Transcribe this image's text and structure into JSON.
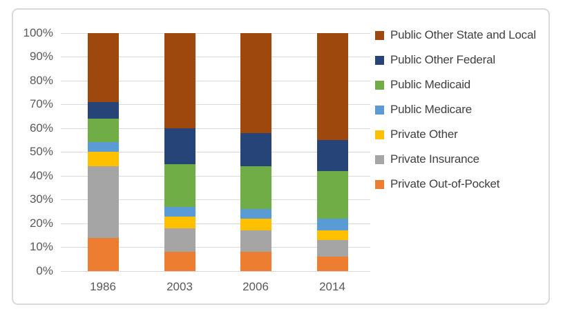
{
  "chart_data": {
    "type": "bar",
    "stacked": true,
    "orientation": "vertical",
    "title": "",
    "xlabel": "",
    "ylabel": "",
    "categories": [
      "1986",
      "2003",
      "2006",
      "2014"
    ],
    "series": [
      {
        "name": "Private Out-of-Pocket",
        "color": "#ED7D31",
        "values": [
          14,
          8,
          8,
          6
        ]
      },
      {
        "name": "Private Insurance",
        "color": "#A5A5A5",
        "values": [
          30,
          10,
          9,
          7
        ]
      },
      {
        "name": "Private Other",
        "color": "#FFC000",
        "values": [
          6,
          5,
          5,
          4
        ]
      },
      {
        "name": "Public Medicare",
        "color": "#5B9BD5",
        "values": [
          4,
          4,
          4,
          5
        ]
      },
      {
        "name": "Public Medicaid",
        "color": "#70AD47",
        "values": [
          10,
          18,
          18,
          20
        ]
      },
      {
        "name": "Public Other Federal",
        "color": "#264478",
        "values": [
          7,
          15,
          14,
          13
        ]
      },
      {
        "name": "Public Other State and Local",
        "color": "#9E480E",
        "values": [
          29,
          40,
          42,
          45
        ]
      }
    ],
    "y_ticks": [
      "0%",
      "10%",
      "20%",
      "30%",
      "40%",
      "50%",
      "60%",
      "70%",
      "80%",
      "90%",
      "100%"
    ],
    "ylim": [
      0,
      100
    ],
    "grid": true,
    "legend_position": "right",
    "legend_order_top_to_bottom": [
      "Public Other State and Local",
      "Public Other Federal",
      "Public Medicaid",
      "Public Medicare",
      "Private Other",
      "Private Insurance",
      "Private Out-of-Pocket"
    ]
  },
  "colors": {
    "background": "#FFFFFF",
    "frame_border": "#D9D9D9",
    "gridline": "#D9D9D9",
    "axis_text": "#595959",
    "legend_text": "#404040"
  }
}
